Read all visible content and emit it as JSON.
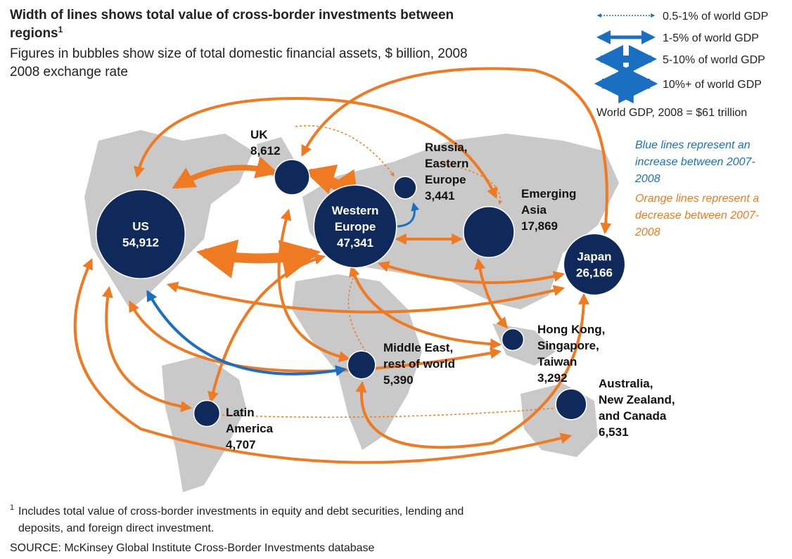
{
  "header": {
    "title_lines": [
      "Width of lines shows total value of cross-border investments between",
      "regions"
    ],
    "title_sup": "1",
    "subtitle_lines": [
      "Figures in bubbles show size of total domestic financial assets, $ billion, 2008",
      "2008 exchange rate"
    ]
  },
  "legend": {
    "items": [
      "0.5-1% of world GDP",
      "1-5% of world GDP",
      "5-10% of world GDP",
      "10%+ of world GDP"
    ],
    "gdp_note": "World GDP, 2008 = $61 trillion",
    "blue_note": [
      "Blue lines represent an",
      "increase between 2007-",
      "2008"
    ],
    "orange_note": [
      "Orange lines represent a",
      "decrease between 2007-",
      "2008"
    ]
  },
  "regions": [
    {
      "name": [
        "US"
      ],
      "value": 54912,
      "label": "54,912"
    },
    {
      "name": [
        "UK"
      ],
      "value": 8612,
      "label": "8,612"
    },
    {
      "name": [
        "Western",
        "Europe"
      ],
      "value": 47341,
      "label": "47,341"
    },
    {
      "name": [
        "Russia,",
        "Eastern",
        "Europe"
      ],
      "value": 3441,
      "label": "3,441"
    },
    {
      "name": [
        "Emerging",
        "Asia"
      ],
      "value": 17869,
      "label": "17,869"
    },
    {
      "name": [
        "Japan"
      ],
      "value": 26166,
      "label": "26,166"
    },
    {
      "name": [
        "Hong Kong,",
        "Singapore,",
        "Taiwan"
      ],
      "value": 3292,
      "label": "3,292"
    },
    {
      "name": [
        "Middle East,",
        "rest of world"
      ],
      "value": 5390,
      "label": "5,390"
    },
    {
      "name": [
        "Latin",
        "America"
      ],
      "value": 4707,
      "label": "4,707"
    },
    {
      "name": [
        "Australia,",
        "New Zealand,",
        "and Canada"
      ],
      "value": 6531,
      "label": "6,531"
    }
  ],
  "footer": {
    "footnote_mark": "1",
    "footnote_lines": [
      "Includes total value of cross-border investments in equity and debt securities, lending and",
      "deposits, and foreign direct investment."
    ],
    "source": "SOURCE: McKinsey Global Institute Cross-Border Investments database"
  }
}
